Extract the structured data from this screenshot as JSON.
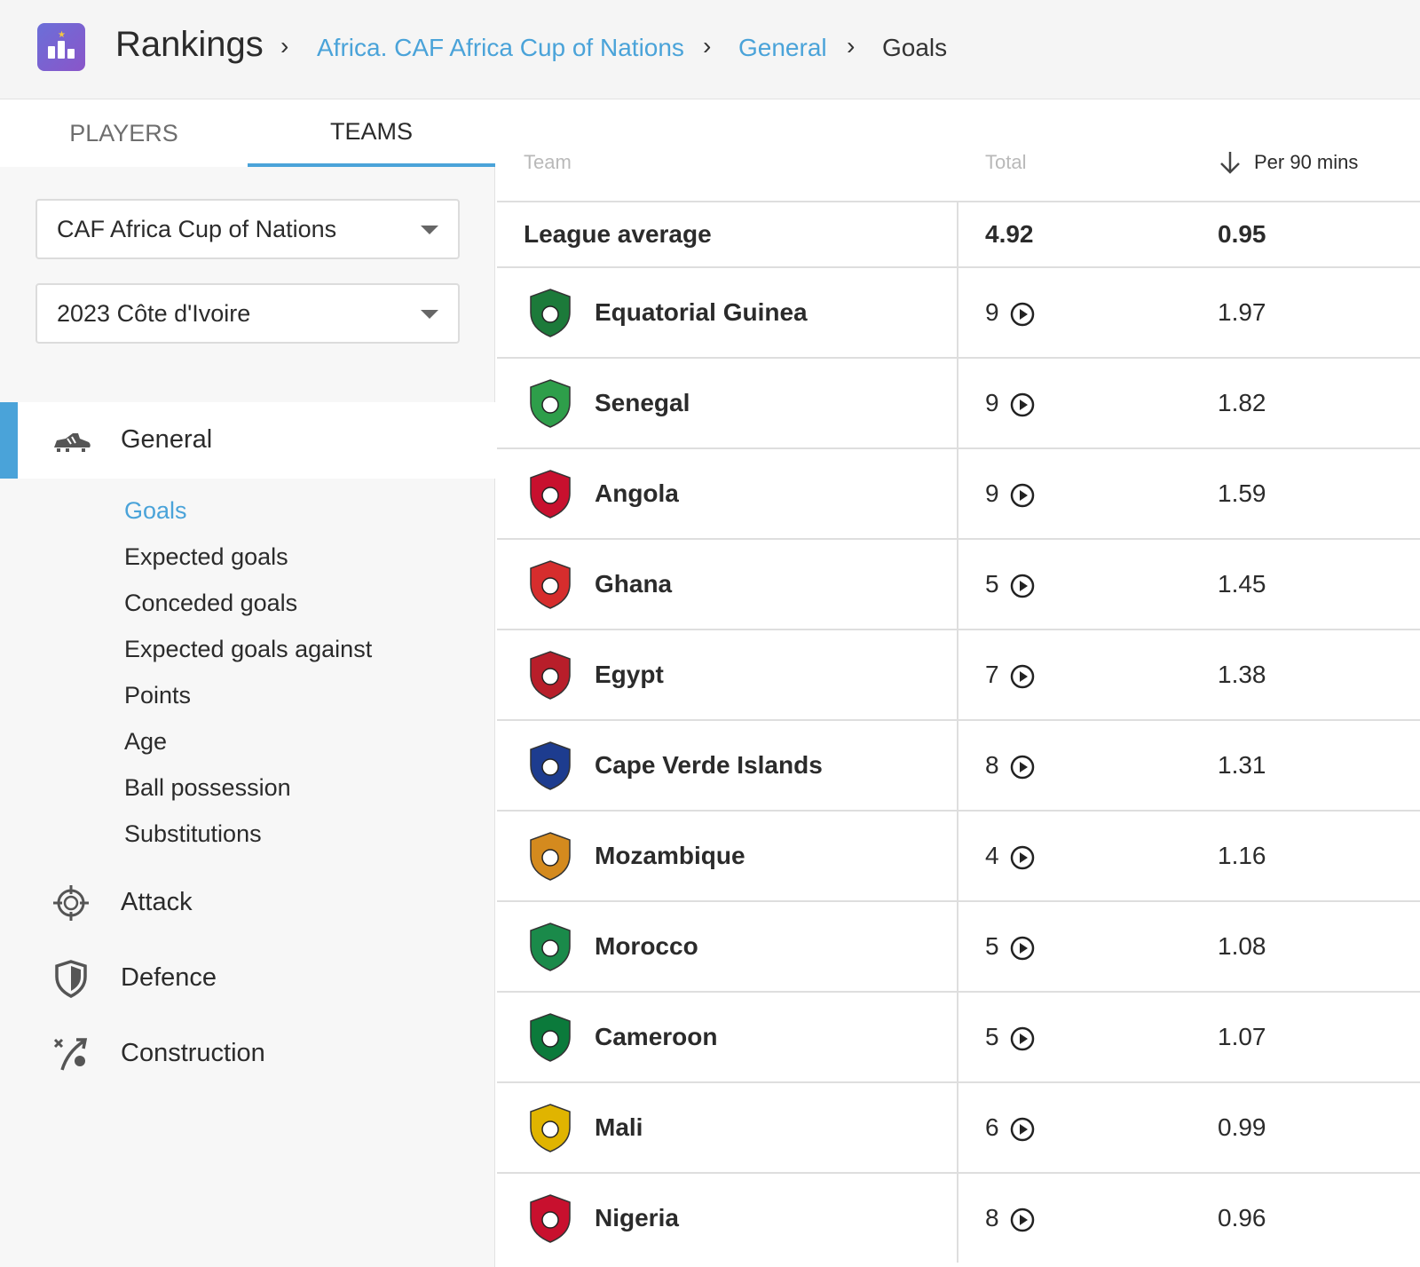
{
  "header": {
    "title": "Rankings",
    "breadcrumbs": [
      {
        "label": "Africa. CAF Africa Cup of Nations",
        "link": true
      },
      {
        "label": "General",
        "link": true
      },
      {
        "label": "Goals",
        "link": false
      }
    ],
    "separator": "›"
  },
  "sidebar": {
    "tabs": [
      {
        "label": "PLAYERS",
        "active": false
      },
      {
        "label": "TEAMS",
        "active": true
      }
    ],
    "competition_select": "CAF Africa Cup of Nations",
    "season_select": "2023 Côte d'Ivoire",
    "categories": [
      {
        "label": "General",
        "icon": "boot-icon",
        "active": true
      },
      {
        "label": "Attack",
        "icon": "crosshair-icon",
        "active": false
      },
      {
        "label": "Defence",
        "icon": "shield-icon",
        "active": false
      },
      {
        "label": "Construction",
        "icon": "pass-icon",
        "active": false
      }
    ],
    "general_items": [
      "Goals",
      "Expected goals",
      "Conceded goals",
      "Expected goals against",
      "Points",
      "Age",
      "Ball possession",
      "Substitutions"
    ],
    "active_item": "Goals"
  },
  "table": {
    "headers": {
      "team": "Team",
      "total": "Total",
      "per90": "Per 90 mins"
    },
    "sort_icon": "arrow-down-icon",
    "play_icon": "play-circle-icon",
    "league_average": {
      "label": "League average",
      "total": "4.92",
      "per90": "0.95"
    },
    "rows": [
      {
        "team": "Equatorial Guinea",
        "total": "9",
        "per90": "1.97",
        "crest": "equatorial-guinea-crest-icon",
        "crest_color": "#1c7a3a"
      },
      {
        "team": "Senegal",
        "total": "9",
        "per90": "1.82",
        "crest": "senegal-crest-icon",
        "crest_color": "#2e9e4a"
      },
      {
        "team": "Angola",
        "total": "9",
        "per90": "1.59",
        "crest": "angola-crest-icon",
        "crest_color": "#c8102e"
      },
      {
        "team": "Ghana",
        "total": "5",
        "per90": "1.45",
        "crest": "ghana-crest-icon",
        "crest_color": "#d62d2d"
      },
      {
        "team": "Egypt",
        "total": "7",
        "per90": "1.38",
        "crest": "egypt-crest-icon",
        "crest_color": "#b81e2a"
      },
      {
        "team": "Cape Verde Islands",
        "total": "8",
        "per90": "1.31",
        "crest": "cape-verde-crest-icon",
        "crest_color": "#1d3c8f"
      },
      {
        "team": "Mozambique",
        "total": "4",
        "per90": "1.16",
        "crest": "mozambique-crest-icon",
        "crest_color": "#d48a1e"
      },
      {
        "team": "Morocco",
        "total": "5",
        "per90": "1.08",
        "crest": "morocco-crest-icon",
        "crest_color": "#1a8a4a"
      },
      {
        "team": "Cameroon",
        "total": "5",
        "per90": "1.07",
        "crest": "cameroon-crest-icon",
        "crest_color": "#0b7a3b"
      },
      {
        "team": "Mali",
        "total": "6",
        "per90": "0.99",
        "crest": "mali-crest-icon",
        "crest_color": "#e0b400"
      },
      {
        "team": "Nigeria",
        "total": "8",
        "per90": "0.96",
        "crest": "nigeria-crest-icon",
        "crest_color": "#c8102e"
      }
    ]
  },
  "colors": {
    "accent": "#4aa3d9",
    "app_icon_start": "#6b6fd8",
    "app_icon_end": "#8a55c9"
  }
}
